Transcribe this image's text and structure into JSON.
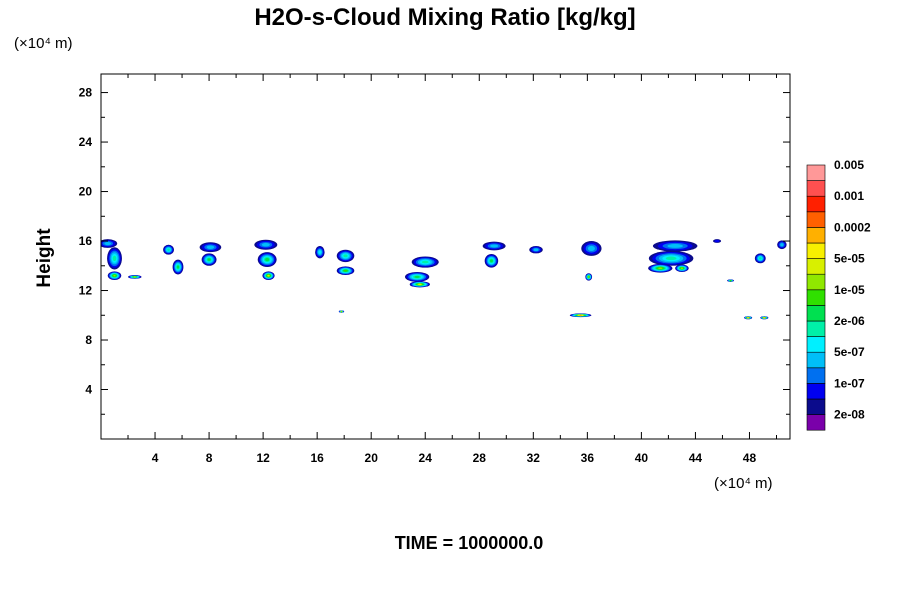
{
  "chart_data": {
    "type": "heatmap",
    "title": "H2O-s-Cloud Mixing Ratio [kg/kg]",
    "ylabel": "Height",
    "y_unit": "(×10⁴ m)",
    "x_unit": "(×10⁴ m)",
    "xlim": [
      0,
      51
    ],
    "ylim": [
      0,
      29.5
    ],
    "x_ticks": [
      4,
      8,
      12,
      16,
      20,
      24,
      28,
      32,
      36,
      40,
      44,
      48
    ],
    "y_ticks": [
      4,
      8,
      12,
      16,
      20,
      24,
      28
    ],
    "grid": false,
    "legend_position": "right",
    "legend_labels": [
      "2e-08",
      "1e-07",
      "5e-07",
      "2e-06",
      "1e-05",
      "5e-05",
      "0.0002",
      "0.001",
      "0.005"
    ],
    "colors": [
      "#7a00aa",
      "#0b0b8c",
      "#0000f0",
      "#0070f0",
      "#00bff8",
      "#00f0ff",
      "#00f0a8",
      "#00e050",
      "#30e000",
      "#90e800",
      "#d8f000",
      "#f8f000",
      "#ffb000",
      "#ff6000",
      "#ff2000",
      "#ff5050",
      "#ff9898"
    ],
    "footer": "TIME = 1000000.0",
    "clouds": [
      {
        "x": 0.5,
        "y": 15.8,
        "w": 1.4,
        "h": 0.7,
        "top": 3
      },
      {
        "x": 1.0,
        "y": 14.6,
        "w": 1.1,
        "h": 1.8,
        "top": 5
      },
      {
        "x": 1.0,
        "y": 13.2,
        "w": 1.0,
        "h": 0.7,
        "top": 8
      },
      {
        "x": 2.5,
        "y": 13.1,
        "w": 1.0,
        "h": 0.3,
        "top": 8
      },
      {
        "x": 5.0,
        "y": 15.3,
        "w": 0.8,
        "h": 0.8,
        "top": 5
      },
      {
        "x": 5.7,
        "y": 13.9,
        "w": 0.8,
        "h": 1.2,
        "top": 6
      },
      {
        "x": 8.1,
        "y": 15.5,
        "w": 1.6,
        "h": 0.8,
        "top": 3
      },
      {
        "x": 8.0,
        "y": 14.5,
        "w": 1.1,
        "h": 1.0,
        "top": 6
      },
      {
        "x": 12.2,
        "y": 15.7,
        "w": 1.7,
        "h": 0.8,
        "top": 3
      },
      {
        "x": 12.3,
        "y": 14.5,
        "w": 1.4,
        "h": 1.2,
        "top": 6
      },
      {
        "x": 12.4,
        "y": 13.2,
        "w": 0.9,
        "h": 0.7,
        "top": 9
      },
      {
        "x": 16.2,
        "y": 15.1,
        "w": 0.7,
        "h": 1.0,
        "top": 4
      },
      {
        "x": 18.1,
        "y": 14.8,
        "w": 1.3,
        "h": 1.0,
        "top": 5
      },
      {
        "x": 18.1,
        "y": 13.6,
        "w": 1.3,
        "h": 0.7,
        "top": 7
      },
      {
        "x": 17.8,
        "y": 10.3,
        "w": 0.4,
        "h": 0.2,
        "top": 8
      },
      {
        "x": 24.0,
        "y": 14.3,
        "w": 2.0,
        "h": 0.9,
        "top": 5
      },
      {
        "x": 23.4,
        "y": 13.1,
        "w": 1.8,
        "h": 0.8,
        "top": 6
      },
      {
        "x": 23.6,
        "y": 12.5,
        "w": 1.5,
        "h": 0.5,
        "top": 9
      },
      {
        "x": 29.1,
        "y": 15.6,
        "w": 1.7,
        "h": 0.7,
        "top": 3
      },
      {
        "x": 28.9,
        "y": 14.4,
        "w": 1.0,
        "h": 1.1,
        "top": 6
      },
      {
        "x": 32.2,
        "y": 15.3,
        "w": 1.0,
        "h": 0.6,
        "top": 3
      },
      {
        "x": 36.3,
        "y": 15.4,
        "w": 1.5,
        "h": 1.2,
        "top": 3
      },
      {
        "x": 36.1,
        "y": 13.1,
        "w": 0.5,
        "h": 0.6,
        "top": 8
      },
      {
        "x": 35.5,
        "y": 10.0,
        "w": 1.6,
        "h": 0.3,
        "top": 11
      },
      {
        "x": 42.5,
        "y": 15.6,
        "w": 3.3,
        "h": 0.9,
        "top": 3
      },
      {
        "x": 42.2,
        "y": 14.6,
        "w": 3.3,
        "h": 1.2,
        "top": 5
      },
      {
        "x": 41.4,
        "y": 13.8,
        "w": 1.8,
        "h": 0.7,
        "top": 8
      },
      {
        "x": 43.0,
        "y": 13.8,
        "w": 1.0,
        "h": 0.6,
        "top": 8
      },
      {
        "x": 45.6,
        "y": 16.0,
        "w": 0.6,
        "h": 0.3,
        "top": 1
      },
      {
        "x": 46.6,
        "y": 12.8,
        "w": 0.5,
        "h": 0.2,
        "top": 7
      },
      {
        "x": 48.8,
        "y": 14.6,
        "w": 0.8,
        "h": 0.8,
        "top": 5
      },
      {
        "x": 50.4,
        "y": 15.7,
        "w": 0.7,
        "h": 0.7,
        "top": 3
      },
      {
        "x": 47.9,
        "y": 9.8,
        "w": 0.6,
        "h": 0.25,
        "top": 11
      },
      {
        "x": 49.1,
        "y": 9.8,
        "w": 0.6,
        "h": 0.25,
        "top": 11
      }
    ]
  }
}
